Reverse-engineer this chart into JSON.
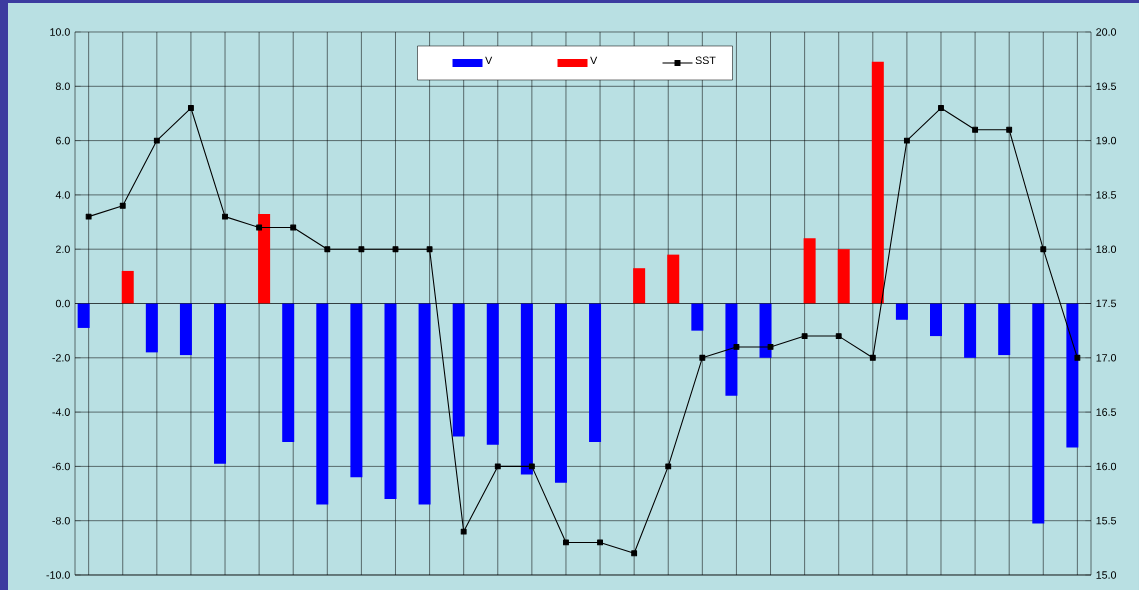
{
  "chart_data": {
    "type": "bar",
    "categories": [
      null,
      null,
      null,
      null,
      null,
      null,
      null,
      null,
      null,
      null,
      null,
      null,
      null,
      null,
      null,
      null,
      null,
      null,
      null,
      null,
      null,
      null,
      null,
      null,
      null,
      null,
      null,
      null,
      null,
      null
    ],
    "series": [
      {
        "name": "V",
        "color": "#0000ff",
        "values": [
          -0.9,
          null,
          -1.8,
          -1.9,
          -5.9,
          null,
          -5.1,
          -7.4,
          -6.4,
          -7.2,
          -7.4,
          -4.9,
          -5.2,
          -6.3,
          -6.6,
          -5.1,
          null,
          null,
          -1.0,
          -3.4,
          -2.0,
          null,
          null,
          null,
          -0.6,
          -1.2,
          -2.0,
          -1.9,
          -8.1,
          -5.3
        ]
      },
      {
        "name": "V",
        "color": "#ff0000",
        "values": [
          null,
          1.2,
          null,
          null,
          null,
          3.3,
          null,
          null,
          null,
          null,
          null,
          null,
          null,
          null,
          null,
          null,
          1.3,
          1.8,
          null,
          null,
          null,
          2.4,
          2.0,
          8.9,
          null,
          null,
          null,
          null,
          null,
          null
        ]
      },
      {
        "name": "SST",
        "type": "line",
        "axis": "y2",
        "color": "#000000",
        "marker": "square",
        "values": [
          18.3,
          18.4,
          19.0,
          19.3,
          18.3,
          18.2,
          18.2,
          18.0,
          18.0,
          18.0,
          18.0,
          15.4,
          16.0,
          16.0,
          15.3,
          15.3,
          15.2,
          16.0,
          17.0,
          17.1,
          17.1,
          17.2,
          17.2,
          17.0,
          19.0,
          19.3,
          19.1,
          19.1,
          18.0,
          17.0
        ]
      }
    ],
    "ylim": [
      -10,
      10
    ],
    "yticks": [
      {
        "value": -10,
        "label": "-10.0"
      },
      {
        "value": -8,
        "label": "-8.0"
      },
      {
        "value": -6,
        "label": "-6.0"
      },
      {
        "value": -4,
        "label": "-4.0"
      },
      {
        "value": -2,
        "label": "-2.0"
      },
      {
        "value": 0,
        "label": "0.0"
      },
      {
        "value": 2,
        "label": "2.0"
      },
      {
        "value": 4,
        "label": "4.0"
      },
      {
        "value": 6,
        "label": "6.0"
      },
      {
        "value": 8,
        "label": "8.0"
      },
      {
        "value": 10,
        "label": "10.0"
      }
    ],
    "y2lim": [
      15,
      20
    ],
    "y2ticks": [
      {
        "value": 15,
        "label": "15.0"
      },
      {
        "value": 15.5,
        "label": "15.5"
      },
      {
        "value": 16,
        "label": "16.0"
      },
      {
        "value": 16.5,
        "label": "16.5"
      },
      {
        "value": 17,
        "label": "17.0"
      },
      {
        "value": 17.5,
        "label": "17.5"
      },
      {
        "value": 18,
        "label": "18.0"
      },
      {
        "value": 18.5,
        "label": "18.5"
      },
      {
        "value": 19,
        "label": "19.0"
      },
      {
        "value": 19.5,
        "label": "19.5"
      },
      {
        "value": 20,
        "label": "20.0"
      }
    ],
    "grid": true,
    "legend": "top"
  }
}
